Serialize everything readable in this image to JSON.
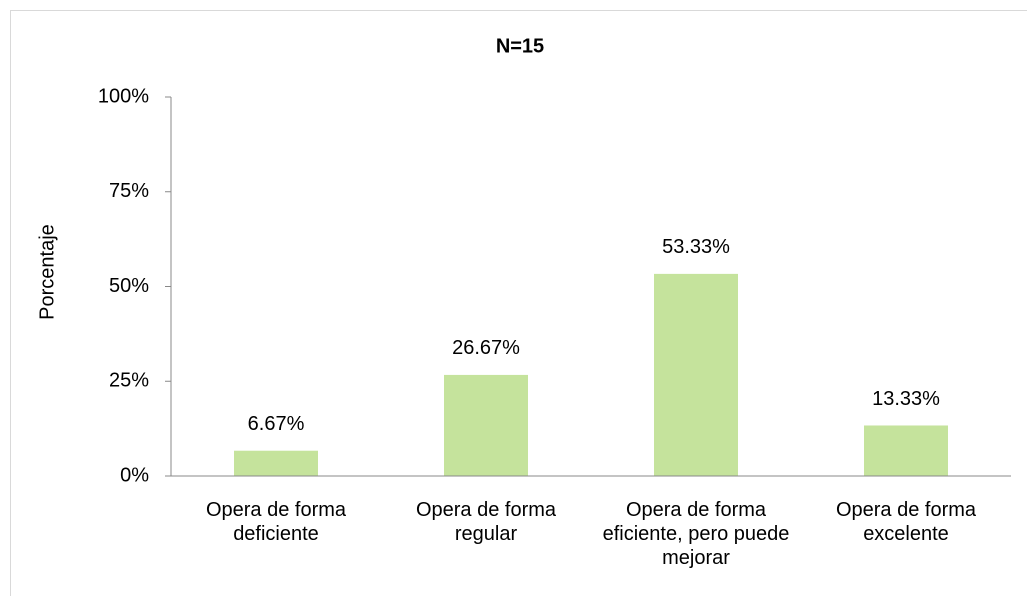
{
  "chart_data": {
    "type": "bar",
    "title": "N=15",
    "ylabel": "Porcentaje",
    "categories": [
      "Opera de forma deficiente",
      "Opera de forma regular",
      "Opera de forma eficiente, pero puede mejorar",
      "Opera de forma excelente"
    ],
    "values": [
      6.67,
      26.67,
      53.33,
      13.33
    ],
    "value_labels": [
      "6.67%",
      "26.67%",
      "53.33%",
      "13.33%"
    ],
    "color": "#c5e39c",
    "ylim": [
      0,
      100
    ],
    "yticks": [
      {
        "value": 0,
        "label": "0%"
      },
      {
        "value": 25,
        "label": "25%"
      },
      {
        "value": 50,
        "label": "50%"
      },
      {
        "value": 75,
        "label": "75%"
      },
      {
        "value": 100,
        "label": "100%"
      }
    ],
    "grid": false
  }
}
